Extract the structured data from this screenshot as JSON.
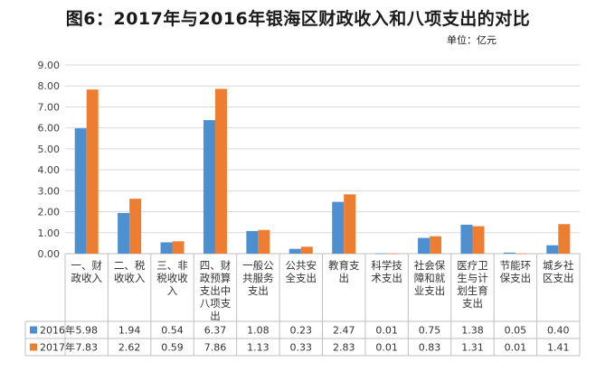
{
  "title": "图6：2017年与2016年银海区财政收入和八项支出的对比",
  "unit": "单位：亿元",
  "colors": {
    "s2016": "#4e8fd0",
    "s2017": "#ed7d31",
    "grid": "#d9d9d9",
    "axis": "#bfbfbf",
    "text": "#404040"
  },
  "chart_data": {
    "type": "bar",
    "title": "图6：2017年与2016年银海区财政收入和八项支出的对比",
    "ylabel": "",
    "xlabel": "",
    "ylim": [
      0,
      9
    ],
    "yticks": [
      "0.00",
      "1.00",
      "2.00",
      "3.00",
      "4.00",
      "5.00",
      "6.00",
      "7.00",
      "8.00",
      "9.00"
    ],
    "grid": true,
    "legend": "bottom-left (data table)",
    "categories": [
      [
        "一、财",
        "政收入"
      ],
      [
        "二、税",
        "收收入"
      ],
      [
        "三、非",
        "税收收",
        "入"
      ],
      [
        "四、财",
        "政预算",
        "支出中",
        "八项支",
        "出"
      ],
      [
        "一般公",
        "共服务",
        "支出"
      ],
      [
        "公共安",
        "全支出"
      ],
      [
        "教育支",
        "出"
      ],
      [
        "科学技",
        "术支出"
      ],
      [
        "社会保",
        "障和就",
        "业支出"
      ],
      [
        "医疗卫",
        "生与计",
        "划生育",
        "支出"
      ],
      [
        "节能环",
        "保支出"
      ],
      [
        "城乡社",
        "区支出"
      ]
    ],
    "series": [
      {
        "name": "2016年",
        "values": [
          5.98,
          1.94,
          0.54,
          6.37,
          1.08,
          0.23,
          2.47,
          0.01,
          0.75,
          1.38,
          0.05,
          0.4
        ],
        "labels": [
          "5.98",
          "1.94",
          "0.54",
          "6.37",
          "1.08",
          "0.23",
          "2.47",
          "0.01",
          "0.75",
          "1.38",
          "0.05",
          "0.40"
        ]
      },
      {
        "name": "2017年",
        "values": [
          7.83,
          2.62,
          0.59,
          7.86,
          1.13,
          0.33,
          2.83,
          0.01,
          0.83,
          1.31,
          0.01,
          1.41
        ],
        "labels": [
          "7.83",
          "2.62",
          "0.59",
          "7.86",
          "1.13",
          "0.33",
          "2.83",
          "0.01",
          "0.83",
          "1.31",
          "0.01",
          "1.41"
        ]
      }
    ]
  }
}
